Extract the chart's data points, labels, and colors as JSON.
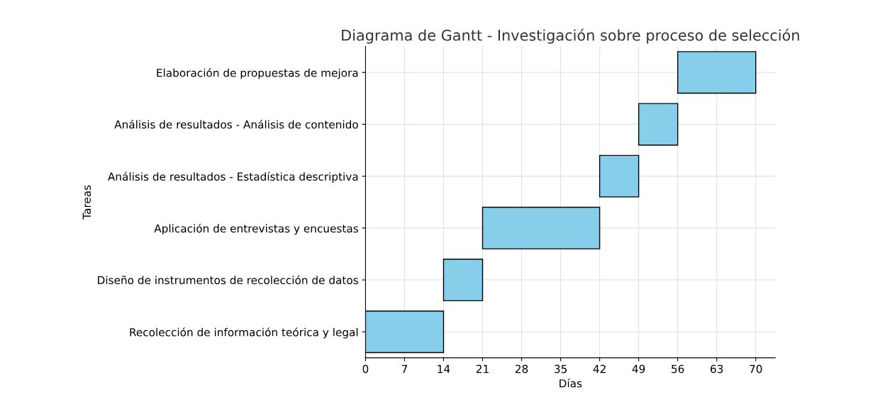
{
  "chart_data": {
    "type": "bar",
    "orientation": "horizontal",
    "title": "Diagrama de Gantt - Investigación sobre proceso de selección",
    "xlabel": "Días",
    "ylabel": "Tareas",
    "categories": [
      "Elaboración de propuestas de mejora",
      "Análisis de resultados - Análisis de contenido",
      "Análisis de resultados - Estadística descriptiva",
      "Aplicación de entrevistas y encuestas",
      "Diseño de instrumentos de recolección de datos",
      "Recolección de información teórica y legal"
    ],
    "base": [
      56,
      49,
      42,
      21,
      14,
      0
    ],
    "values": [
      14,
      7,
      7,
      21,
      7,
      14
    ],
    "color": "#87ceeb",
    "xlim": [
      0,
      73.5
    ],
    "xticks": [
      0,
      7,
      14,
      21,
      28,
      35,
      42,
      49,
      56,
      63,
      70
    ],
    "grid": true
  }
}
